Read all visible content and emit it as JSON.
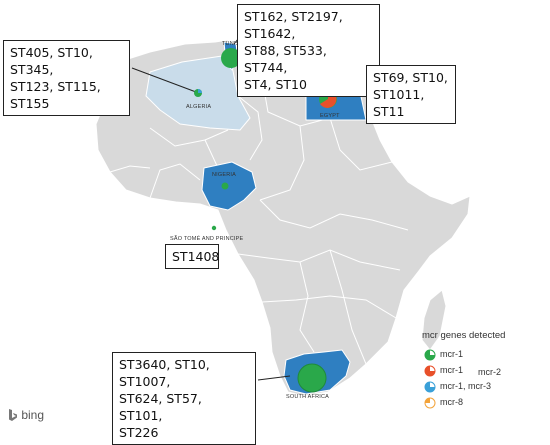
{
  "map": {
    "land_color": "#d9d9d9",
    "highlight_color": "#2f7fc1",
    "light_color": "#c9dcea",
    "provider": "bing"
  },
  "countries": {
    "algeria": "ALGERIA",
    "tunisia": "TUNISIA",
    "egypt": "EGYPT",
    "nigeria": "NIGERIA",
    "sao_tome": "SÃO TOMÉ AND PRINCIPE",
    "south_africa": "SOUTH AFRICA"
  },
  "annotations": {
    "tunisia": "ST162, ST2197, ST1642,\nST88, ST533, ST744,\nST4, ST10",
    "algeria": "ST405, ST10, ST345,\nST123, ST115, ST155",
    "egypt": "ST69, ST10,\nST1011, ST11",
    "sao_tome": "ST1408",
    "south_africa": "ST3640, ST10, ST1007,\nST624, ST57, ST101,\nST226"
  },
  "legend": {
    "title": "mcr genes detected",
    "items": [
      {
        "label": "mcr-1",
        "extra": "",
        "colors": [
          "#2aa84a"
        ]
      },
      {
        "label": "mcr-1",
        "extra": "mcr-2",
        "colors": [
          "#2aa84a",
          "#e8502a"
        ]
      },
      {
        "label": "mcr-1, mcr-3",
        "extra": "",
        "colors": [
          "#2aa84a",
          "#3aa0d8"
        ]
      },
      {
        "label": "mcr-8",
        "extra": "",
        "colors": [
          "#f3a33a"
        ]
      }
    ]
  }
}
